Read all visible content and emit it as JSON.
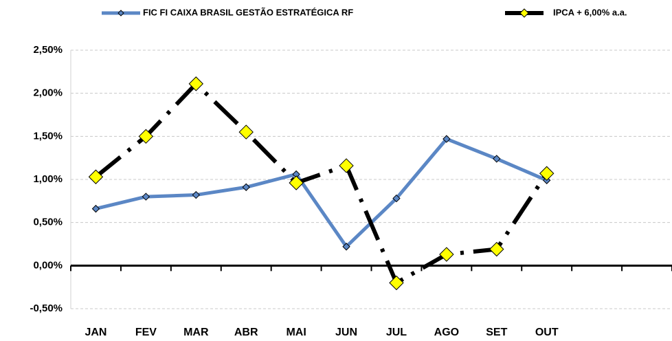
{
  "chart_data": {
    "type": "line",
    "categories": [
      "JAN",
      "FEV",
      "MAR",
      "ABR",
      "MAI",
      "JUN",
      "JUL",
      "AGO",
      "SET",
      "OUT",
      null,
      null
    ],
    "series": [
      {
        "name": "FIC FI CAIXA BRASIL GESTÃO ESTRATÉGICA RF",
        "color": "#5b87c5",
        "marker_color": "#5b87c5",
        "values": [
          0.66,
          0.8,
          0.82,
          0.91,
          1.06,
          0.22,
          0.78,
          1.47,
          1.24,
          0.99,
          null,
          null
        ]
      },
      {
        "name": "IPCA + 6,00% a.a.",
        "color": "#000000",
        "marker_color": "#ffff00",
        "values": [
          1.03,
          1.5,
          2.11,
          1.55,
          0.96,
          1.16,
          -0.2,
          0.13,
          0.19,
          1.07,
          null,
          null
        ]
      }
    ],
    "ylim": [
      -0.5,
      2.5
    ],
    "yticks": [
      {
        "value": -0.5,
        "label": "-0,50%"
      },
      {
        "value": 0,
        "label": "0,00%"
      },
      {
        "value": 0.5,
        "label": "0,50%"
      },
      {
        "value": 1,
        "label": "1,00%"
      },
      {
        "value": 1.5,
        "label": "1,50%"
      },
      {
        "value": 2,
        "label": "2,00%"
      },
      {
        "value": 2.5,
        "label": "2,50%"
      }
    ],
    "grid": true
  }
}
